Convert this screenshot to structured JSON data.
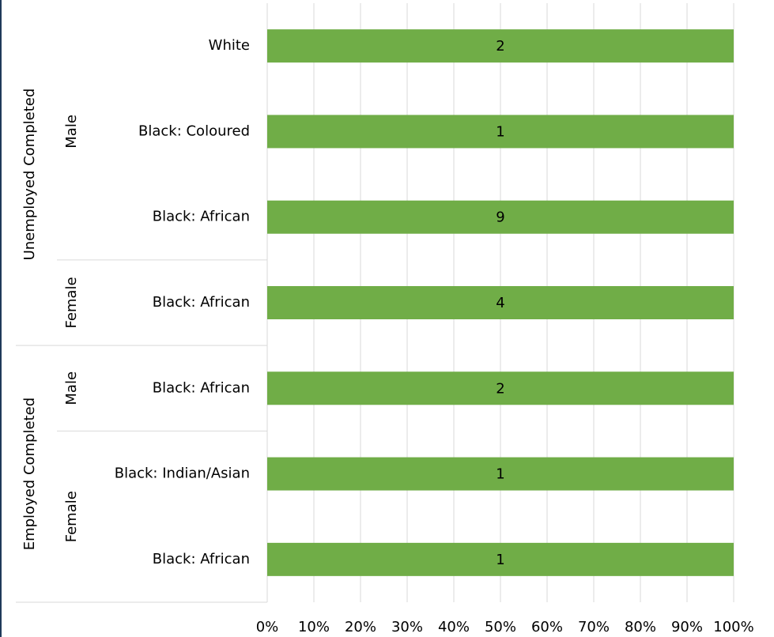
{
  "chart_data": {
    "type": "bar",
    "orientation": "horizontal",
    "stacked_percent": true,
    "xaxis": {
      "ticks": [
        "0%",
        "10%",
        "20%",
        "30%",
        "40%",
        "50%",
        "60%",
        "70%",
        "80%",
        "90%",
        "100%"
      ],
      "range": [
        0,
        100
      ],
      "grid": true
    },
    "groups": [
      {
        "label": "Unemployed Completed",
        "subgroups": [
          {
            "label": "Male",
            "categories": [
              "White",
              "Black: Coloured",
              "Black: African"
            ]
          },
          {
            "label": "Female",
            "categories": [
              "Black: African"
            ]
          }
        ]
      },
      {
        "label": "Employed Completed",
        "subgroups": [
          {
            "label": "Male",
            "categories": [
              "Black: African"
            ]
          },
          {
            "label": "Female",
            "categories": [
              "Black: Indian/Asian",
              "Black: African"
            ]
          }
        ]
      }
    ],
    "categories": [
      "White",
      "Black: Coloured",
      "Black: African",
      "Black: African",
      "Black: African",
      "Black: Indian/Asian",
      "Black: African"
    ],
    "series": [
      {
        "values": [
          2,
          1,
          9,
          4,
          2,
          1,
          1
        ],
        "percent": [
          100,
          100,
          100,
          100,
          100,
          100,
          100
        ],
        "data_labels": [
          "2",
          "1",
          "9",
          "4",
          "2",
          "1",
          "1"
        ],
        "color": "#70ad47"
      }
    ],
    "colors": {
      "bar": "#70ad47",
      "grid": "#d9d9d9",
      "text": "#000000",
      "frame": "#1f3a5a"
    }
  }
}
